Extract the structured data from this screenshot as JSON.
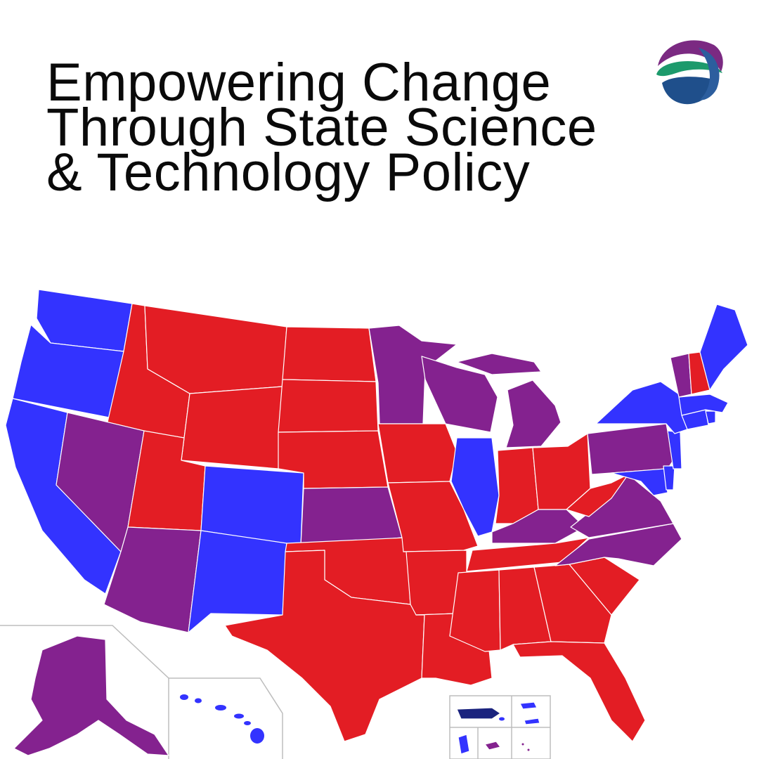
{
  "headline": {
    "line1": "Empowering Change",
    "line2": "Through State Science",
    "line3": "& Technology Policy"
  },
  "logo": {
    "icon": "globe-swirl-logo",
    "colors": [
      "#7b2a82",
      "#1d9a6c",
      "#1f4f8b",
      "#3a6fb0"
    ]
  },
  "map": {
    "legend_colors": {
      "red": "#e31d24",
      "blue": "#3333ff",
      "purple": "#84228f",
      "territory_dark": "#1a237e"
    }
  }
}
